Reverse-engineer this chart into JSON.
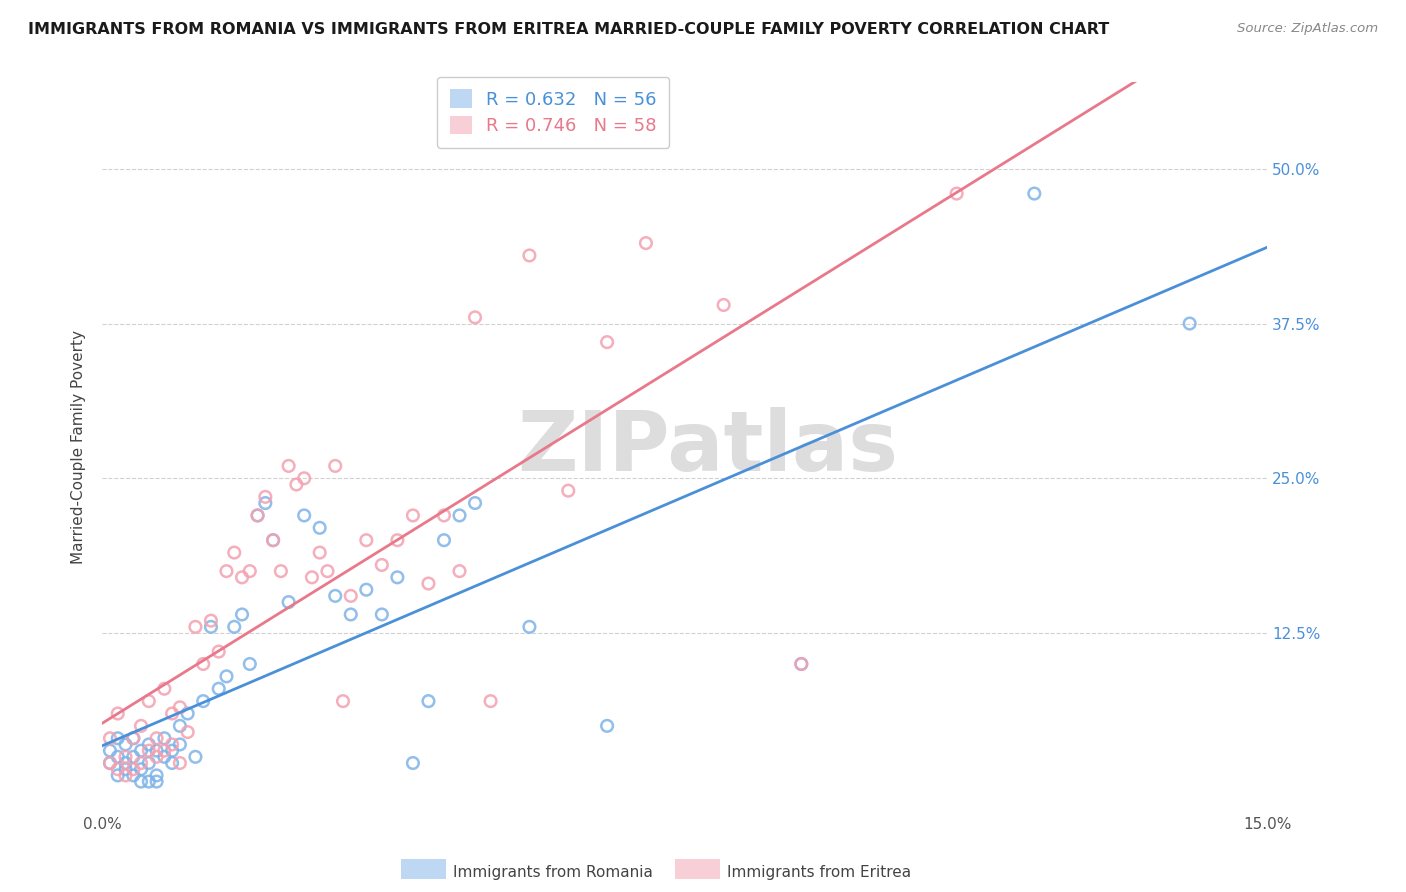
{
  "title": "IMMIGRANTS FROM ROMANIA VS IMMIGRANTS FROM ERITREA MARRIED-COUPLE FAMILY POVERTY CORRELATION CHART",
  "source": "Source: ZipAtlas.com",
  "ylabel": "Married-Couple Family Poverty",
  "xlim": [
    0.0,
    0.15
  ],
  "ylim": [
    -0.02,
    0.57
  ],
  "ytick_labels_right": [
    "50.0%",
    "37.5%",
    "25.0%",
    "12.5%"
  ],
  "ytick_positions_right": [
    0.5,
    0.375,
    0.25,
    0.125
  ],
  "romania_color": "#7fb3e8",
  "eritrea_color": "#f4a0b0",
  "romania_R": 0.632,
  "romania_N": 56,
  "eritrea_R": 0.746,
  "eritrea_N": 58,
  "romania_line_color": "#4a90d9",
  "eritrea_line_color": "#e8788a",
  "watermark": "ZIPatlas",
  "romania_x": [
    0.001,
    0.001,
    0.002,
    0.002,
    0.002,
    0.003,
    0.003,
    0.003,
    0.004,
    0.004,
    0.004,
    0.005,
    0.005,
    0.005,
    0.006,
    0.006,
    0.006,
    0.007,
    0.007,
    0.007,
    0.008,
    0.008,
    0.009,
    0.009,
    0.01,
    0.01,
    0.011,
    0.012,
    0.013,
    0.014,
    0.015,
    0.016,
    0.017,
    0.018,
    0.019,
    0.02,
    0.021,
    0.022,
    0.024,
    0.026,
    0.028,
    0.03,
    0.032,
    0.034,
    0.036,
    0.038,
    0.04,
    0.042,
    0.044,
    0.046,
    0.048,
    0.055,
    0.065,
    0.09,
    0.12,
    0.14
  ],
  "romania_y": [
    0.02,
    0.03,
    0.01,
    0.025,
    0.04,
    0.015,
    0.02,
    0.035,
    0.01,
    0.025,
    0.04,
    0.015,
    0.03,
    0.005,
    0.02,
    0.035,
    0.005,
    0.01,
    0.03,
    0.005,
    0.025,
    0.04,
    0.02,
    0.03,
    0.035,
    0.05,
    0.06,
    0.025,
    0.07,
    0.13,
    0.08,
    0.09,
    0.13,
    0.14,
    0.1,
    0.22,
    0.23,
    0.2,
    0.15,
    0.22,
    0.21,
    0.155,
    0.14,
    0.16,
    0.14,
    0.17,
    0.02,
    0.07,
    0.2,
    0.22,
    0.23,
    0.13,
    0.05,
    0.1,
    0.48,
    0.375
  ],
  "eritrea_x": [
    0.001,
    0.001,
    0.002,
    0.002,
    0.003,
    0.003,
    0.004,
    0.004,
    0.005,
    0.005,
    0.006,
    0.006,
    0.007,
    0.007,
    0.008,
    0.008,
    0.009,
    0.009,
    0.01,
    0.01,
    0.011,
    0.012,
    0.013,
    0.014,
    0.015,
    0.016,
    0.017,
    0.018,
    0.019,
    0.02,
    0.021,
    0.022,
    0.023,
    0.024,
    0.025,
    0.026,
    0.027,
    0.028,
    0.029,
    0.03,
    0.031,
    0.032,
    0.034,
    0.036,
    0.038,
    0.04,
    0.042,
    0.044,
    0.046,
    0.048,
    0.05,
    0.055,
    0.06,
    0.065,
    0.07,
    0.08,
    0.09,
    0.11
  ],
  "eritrea_y": [
    0.02,
    0.04,
    0.015,
    0.06,
    0.01,
    0.025,
    0.015,
    0.04,
    0.02,
    0.05,
    0.03,
    0.07,
    0.025,
    0.04,
    0.03,
    0.08,
    0.035,
    0.06,
    0.02,
    0.065,
    0.045,
    0.13,
    0.1,
    0.135,
    0.11,
    0.175,
    0.19,
    0.17,
    0.175,
    0.22,
    0.235,
    0.2,
    0.175,
    0.26,
    0.245,
    0.25,
    0.17,
    0.19,
    0.175,
    0.26,
    0.07,
    0.155,
    0.2,
    0.18,
    0.2,
    0.22,
    0.165,
    0.22,
    0.175,
    0.38,
    0.07,
    0.43,
    0.24,
    0.36,
    0.44,
    0.39,
    0.1,
    0.48
  ]
}
